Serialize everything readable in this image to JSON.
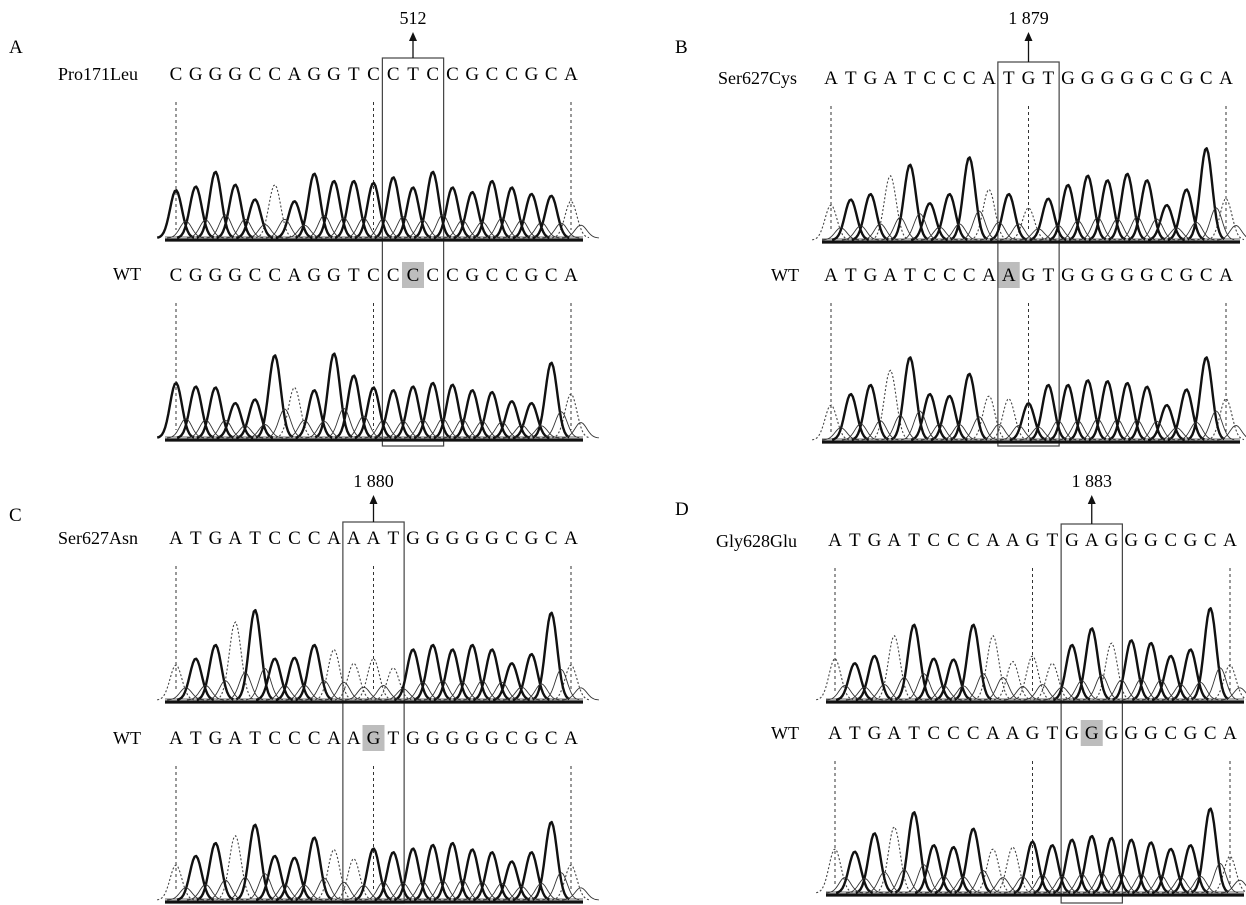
{
  "panels": [
    {
      "id": "A",
      "mutation_label": "Pro171Leu",
      "wt_label": "WT",
      "position_label": "512",
      "mutant_sequence": "CGGGCCAGGTCCTCCGCCGCA",
      "wt_sequence": "CGGGCCAGGTCCCCCGCCGCA",
      "box_codon": [
        11,
        13
      ],
      "changed_base": 12,
      "dashed_bases": [
        0,
        10,
        20
      ],
      "mut_peaks": [
        0.52,
        0.56,
        0.72,
        0.58,
        0.42,
        0.58,
        0.4,
        0.7,
        0.62,
        0.62,
        0.6,
        0.66,
        0.55,
        0.72,
        0.55,
        0.5,
        0.62,
        0.55,
        0.48,
        0.46,
        0.4
      ],
      "mut_faint": [
        0,
        0,
        0,
        0,
        0,
        1,
        0,
        0,
        0,
        0,
        0,
        0,
        0,
        0,
        0,
        0,
        0,
        0,
        0,
        0,
        1
      ],
      "wt_peaks": [
        0.6,
        0.56,
        0.55,
        0.38,
        0.42,
        0.9,
        0.55,
        0.52,
        0.92,
        0.68,
        0.55,
        0.52,
        0.56,
        0.6,
        0.58,
        0.52,
        0.5,
        0.4,
        0.38,
        0.82,
        0.48
      ],
      "wt_faint": [
        0,
        0,
        0,
        0,
        0,
        0,
        1,
        0,
        0,
        0,
        0,
        0,
        0,
        0,
        0,
        0,
        0,
        0,
        0,
        0,
        1
      ]
    },
    {
      "id": "B",
      "mutation_label": "Ser627Cys",
      "wt_label": "WT",
      "position_label": "1 879",
      "mutant_sequence": "ATGATCCCATGTGGGGGCGCA",
      "wt_sequence": "ATGATCCCAAGTGGGGGCGCA",
      "box_codon": [
        9,
        11
      ],
      "changed_base": 9,
      "dashed_bases": [
        0,
        10,
        20
      ],
      "mut_peaks": [
        0.38,
        0.44,
        0.5,
        0.7,
        0.82,
        0.4,
        0.5,
        0.9,
        0.55,
        0.5,
        0.35,
        0.45,
        0.6,
        0.7,
        0.65,
        0.72,
        0.65,
        0.38,
        0.55,
        1.0,
        0.45
      ],
      "mut_faint": [
        1,
        0,
        0,
        1,
        0,
        0,
        0,
        0,
        1,
        0,
        1,
        0,
        0,
        0,
        0,
        0,
        0,
        0,
        0,
        0,
        1
      ],
      "wt_peaks": [
        0.38,
        0.5,
        0.6,
        0.76,
        0.9,
        0.5,
        0.48,
        0.72,
        0.48,
        0.45,
        0.4,
        0.6,
        0.6,
        0.65,
        0.64,
        0.62,
        0.58,
        0.38,
        0.55,
        0.9,
        0.45
      ],
      "wt_faint": [
        1,
        0,
        0,
        1,
        0,
        0,
        0,
        0,
        1,
        1,
        0,
        0,
        0,
        0,
        0,
        0,
        0,
        0,
        0,
        0,
        1
      ]
    },
    {
      "id": "C",
      "mutation_label": "Ser627Asn",
      "wt_label": "WT",
      "position_label": "1 880",
      "mutant_sequence": "ATGATCCCAAATGGGGGCGCA",
      "wt_sequence": "ATGATCCCAAGTGGGGGCGCA",
      "box_codon": [
        9,
        11
      ],
      "changed_base": 10,
      "dashed_bases": [
        0,
        10,
        20
      ],
      "mut_peaks": [
        0.38,
        0.45,
        0.6,
        0.85,
        0.98,
        0.45,
        0.46,
        0.6,
        0.55,
        0.4,
        0.45,
        0.35,
        0.55,
        0.6,
        0.55,
        0.6,
        0.55,
        0.4,
        0.5,
        0.95,
        0.38
      ],
      "mut_faint": [
        1,
        0,
        0,
        1,
        0,
        0,
        0,
        0,
        1,
        1,
        1,
        1,
        0,
        0,
        0,
        0,
        0,
        0,
        0,
        0,
        1
      ],
      "wt_peaks": [
        0.38,
        0.48,
        0.62,
        0.7,
        0.82,
        0.48,
        0.46,
        0.68,
        0.55,
        0.45,
        0.56,
        0.52,
        0.56,
        0.6,
        0.62,
        0.55,
        0.52,
        0.42,
        0.52,
        0.85,
        0.38
      ],
      "wt_faint": [
        1,
        0,
        0,
        1,
        0,
        0,
        0,
        0,
        1,
        1,
        0,
        0,
        0,
        0,
        0,
        0,
        0,
        0,
        0,
        0,
        1
      ]
    },
    {
      "id": "D",
      "mutation_label": "Gly628Glu",
      "wt_label": "WT",
      "position_label": "1 883",
      "mutant_sequence": "ATGATCCCAAGTGAGGGCGCA",
      "wt_sequence": "ATGATCCCAAGTGGGGGCGCA",
      "box_codon": [
        12,
        14
      ],
      "changed_base": 13,
      "dashed_bases": [
        0,
        10,
        20
      ],
      "mut_peaks": [
        0.45,
        0.4,
        0.48,
        0.7,
        0.82,
        0.45,
        0.44,
        0.82,
        0.7,
        0.42,
        0.48,
        0.4,
        0.6,
        0.78,
        0.62,
        0.65,
        0.62,
        0.48,
        0.55,
        1.0,
        0.38
      ],
      "mut_faint": [
        1,
        0,
        0,
        1,
        0,
        0,
        0,
        0,
        1,
        1,
        1,
        1,
        0,
        0,
        1,
        0,
        0,
        0,
        0,
        0,
        1
      ],
      "wt_peaks": [
        0.48,
        0.45,
        0.65,
        0.72,
        0.88,
        0.52,
        0.5,
        0.7,
        0.48,
        0.5,
        0.56,
        0.52,
        0.58,
        0.62,
        0.6,
        0.58,
        0.55,
        0.48,
        0.52,
        0.92,
        0.4
      ],
      "wt_faint": [
        1,
        0,
        0,
        1,
        0,
        0,
        0,
        0,
        1,
        1,
        0,
        0,
        0,
        0,
        0,
        0,
        0,
        0,
        0,
        0,
        1
      ]
    }
  ]
}
